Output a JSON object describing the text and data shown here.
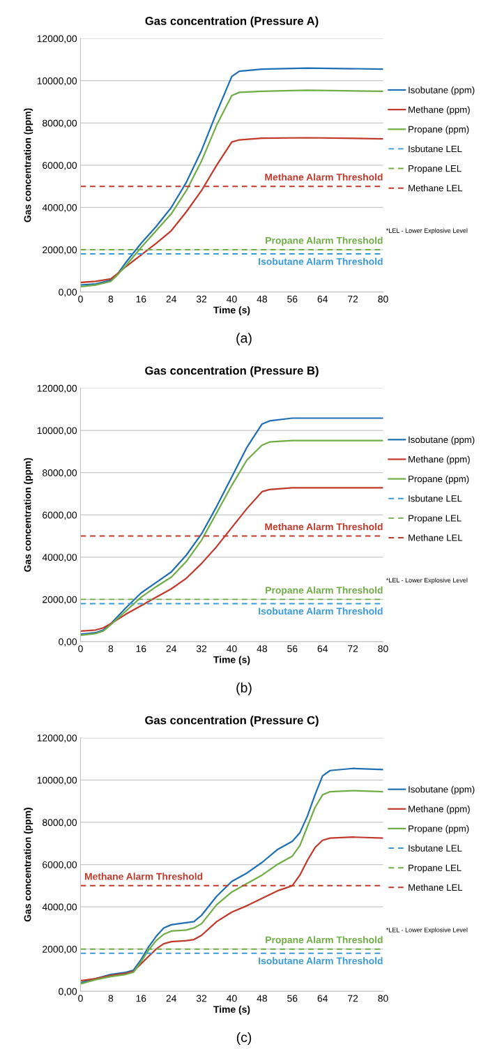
{
  "chart_data": [
    {
      "type": "line",
      "title": "Gas concentration (Pressure A)",
      "xlabel": "Time (s)",
      "ylabel": "Gas concentration (ppm)",
      "xlim": [
        0,
        80
      ],
      "xticks": [
        0,
        8,
        16,
        24,
        32,
        40,
        48,
        56,
        64,
        72,
        80
      ],
      "ylim": [
        0,
        12000
      ],
      "yticks": [
        {
          "value": 0,
          "label": "0,00"
        },
        {
          "value": 2000,
          "label": "2000,00"
        },
        {
          "value": 4000,
          "label": "4000,00"
        },
        {
          "value": 6000,
          "label": "6000,00"
        },
        {
          "value": 8000,
          "label": "8000,00"
        },
        {
          "value": 10000,
          "label": "10000,00"
        },
        {
          "value": 12000,
          "label": "12000,00"
        }
      ],
      "grid": "y",
      "legend": "right",
      "series": [
        {
          "name": "Isobutane (ppm)",
          "color": "#1f6fb4",
          "x": [
            0,
            4,
            8,
            10,
            12,
            16,
            20,
            24,
            28,
            32,
            36,
            40,
            42,
            48,
            60,
            80
          ],
          "values": [
            330,
            380,
            550,
            900,
            1400,
            2300,
            3100,
            4000,
            5200,
            6700,
            8500,
            10200,
            10450,
            10550,
            10600,
            10550
          ]
        },
        {
          "name": "Methane (ppm)",
          "color": "#c0392b",
          "x": [
            0,
            4,
            8,
            10,
            12,
            16,
            20,
            24,
            28,
            32,
            36,
            40,
            42,
            48,
            60,
            80
          ],
          "values": [
            450,
            500,
            620,
            900,
            1200,
            1750,
            2300,
            2900,
            3800,
            4800,
            6000,
            7100,
            7200,
            7280,
            7300,
            7250
          ]
        },
        {
          "name": "Propane (ppm)",
          "color": "#70ad47",
          "x": [
            0,
            4,
            8,
            10,
            12,
            16,
            20,
            24,
            28,
            32,
            36,
            40,
            42,
            48,
            60,
            80
          ],
          "values": [
            250,
            330,
            500,
            850,
            1250,
            2100,
            2900,
            3700,
            4800,
            6200,
            7900,
            9300,
            9450,
            9500,
            9550,
            9500
          ]
        },
        {
          "name": "Isbutane LEL",
          "color": "#3a9ad9",
          "line_style": "dashed",
          "x": [
            0,
            80
          ],
          "values": [
            1800,
            1800
          ]
        },
        {
          "name": "Propane LEL",
          "color": "#70ad47",
          "line_style": "dashed",
          "x": [
            0,
            80
          ],
          "values": [
            2000,
            2000
          ]
        },
        {
          "name": "Methane LEL",
          "color": "#c0392b",
          "line_style": "dashed",
          "x": [
            0,
            80
          ],
          "values": [
            5000,
            5000
          ]
        }
      ],
      "annotations": [
        "*LEL - Lower Explosive Level",
        "(a)",
        "Methane Alarm Threshold",
        "Propane Alarm Threshold",
        "Isobutane Alarm Threshold"
      ]
    },
    {
      "type": "line",
      "title": "Gas concentration (Pressure B)",
      "xlabel": "Time (s)",
      "ylabel": "Gas concentration (ppm)",
      "xlim": [
        0,
        80
      ],
      "xticks": [
        0,
        8,
        16,
        24,
        32,
        40,
        48,
        56,
        64,
        72,
        80
      ],
      "ylim": [
        0,
        12000
      ],
      "yticks": [
        {
          "value": 0,
          "label": "0,00"
        },
        {
          "value": 2000,
          "label": "2000,00"
        },
        {
          "value": 4000,
          "label": "4000,00"
        },
        {
          "value": 6000,
          "label": "6000,00"
        },
        {
          "value": 8000,
          "label": "8000,00"
        },
        {
          "value": 10000,
          "label": "10000,00"
        },
        {
          "value": 12000,
          "label": "12000,00"
        }
      ],
      "grid": "y",
      "legend": "right",
      "series": [
        {
          "name": "Isobutane (ppm)",
          "color": "#1f6fb4",
          "x": [
            0,
            4,
            6,
            8,
            12,
            16,
            20,
            24,
            28,
            32,
            36,
            40,
            44,
            48,
            50,
            56,
            80
          ],
          "values": [
            350,
            420,
            550,
            850,
            1600,
            2300,
            2800,
            3300,
            4100,
            5100,
            6400,
            7800,
            9200,
            10300,
            10450,
            10580,
            10580
          ]
        },
        {
          "name": "Methane (ppm)",
          "color": "#c0392b",
          "x": [
            0,
            4,
            6,
            8,
            12,
            16,
            20,
            24,
            28,
            32,
            36,
            40,
            44,
            48,
            50,
            56,
            80
          ],
          "values": [
            500,
            550,
            650,
            850,
            1300,
            1700,
            2100,
            2500,
            3000,
            3700,
            4500,
            5400,
            6300,
            7100,
            7200,
            7280,
            7280
          ]
        },
        {
          "name": "Propane (ppm)",
          "color": "#70ad47",
          "x": [
            0,
            4,
            6,
            8,
            12,
            16,
            20,
            24,
            28,
            32,
            36,
            40,
            44,
            48,
            50,
            56,
            80
          ],
          "values": [
            300,
            380,
            500,
            800,
            1450,
            2100,
            2600,
            3050,
            3800,
            4800,
            6100,
            7400,
            8600,
            9300,
            9450,
            9520,
            9520
          ]
        },
        {
          "name": "Isbutane LEL",
          "color": "#3a9ad9",
          "line_style": "dashed",
          "x": [
            0,
            80
          ],
          "values": [
            1800,
            1800
          ]
        },
        {
          "name": "Propane LEL",
          "color": "#70ad47",
          "line_style": "dashed",
          "x": [
            0,
            80
          ],
          "values": [
            2000,
            2000
          ]
        },
        {
          "name": "Methane LEL",
          "color": "#c0392b",
          "line_style": "dashed",
          "x": [
            0,
            80
          ],
          "values": [
            5000,
            5000
          ]
        }
      ],
      "annotations": [
        "*LEL - Lower Explosive Level",
        "(b)",
        "Methane Alarm Threshold",
        "Propane Alarm Threshold",
        "Isobutane Alarm Threshold"
      ]
    },
    {
      "type": "line",
      "title": "Gas concentration (Pressure C)",
      "xlabel": "Time (s)",
      "ylabel": "Gas concentration (ppm)",
      "xlim": [
        0,
        80
      ],
      "xticks": [
        0,
        8,
        16,
        24,
        32,
        40,
        48,
        56,
        64,
        72,
        80
      ],
      "ylim": [
        0,
        12000
      ],
      "yticks": [
        {
          "value": 0,
          "label": "0,00"
        },
        {
          "value": 2000,
          "label": "2000,00"
        },
        {
          "value": 4000,
          "label": "4000,00"
        },
        {
          "value": 6000,
          "label": "6000,00"
        },
        {
          "value": 8000,
          "label": "8000,00"
        },
        {
          "value": 10000,
          "label": "10000,00"
        },
        {
          "value": 12000,
          "label": "12000,00"
        }
      ],
      "grid": "y",
      "legend": "right",
      "series": [
        {
          "name": "Isobutane (ppm)",
          "color": "#1f6fb4",
          "x": [
            0,
            4,
            8,
            12,
            14,
            16,
            18,
            20,
            22,
            24,
            28,
            30,
            32,
            36,
            40,
            44,
            48,
            52,
            56,
            58,
            60,
            62,
            64,
            66,
            72,
            80
          ],
          "values": [
            400,
            600,
            800,
            900,
            1000,
            1500,
            2100,
            2600,
            3000,
            3150,
            3250,
            3300,
            3600,
            4500,
            5200,
            5600,
            6100,
            6700,
            7100,
            7500,
            8300,
            9300,
            10200,
            10450,
            10550,
            10500
          ]
        },
        {
          "name": "Methane (ppm)",
          "color": "#c0392b",
          "x": [
            0,
            4,
            8,
            12,
            14,
            16,
            18,
            20,
            22,
            24,
            28,
            30,
            32,
            36,
            40,
            44,
            48,
            52,
            56,
            58,
            60,
            62,
            64,
            66,
            72,
            80
          ],
          "values": [
            500,
            600,
            750,
            850,
            950,
            1300,
            1650,
            2000,
            2250,
            2350,
            2400,
            2450,
            2650,
            3300,
            3750,
            4050,
            4400,
            4750,
            5000,
            5500,
            6200,
            6800,
            7150,
            7250,
            7300,
            7250
          ]
        },
        {
          "name": "Propane (ppm)",
          "color": "#70ad47",
          "x": [
            0,
            4,
            8,
            12,
            14,
            16,
            18,
            20,
            22,
            24,
            28,
            30,
            32,
            36,
            40,
            44,
            48,
            52,
            56,
            58,
            60,
            62,
            64,
            66,
            72,
            80
          ],
          "values": [
            350,
            550,
            700,
            800,
            900,
            1400,
            1950,
            2400,
            2700,
            2850,
            2900,
            3000,
            3200,
            4100,
            4700,
            5100,
            5500,
            6000,
            6400,
            6900,
            7800,
            8700,
            9300,
            9450,
            9500,
            9450
          ]
        },
        {
          "name": "Isbutane LEL",
          "color": "#3a9ad9",
          "line_style": "dashed",
          "x": [
            0,
            80
          ],
          "values": [
            1800,
            1800
          ]
        },
        {
          "name": "Propane LEL",
          "color": "#70ad47",
          "line_style": "dashed",
          "x": [
            0,
            80
          ],
          "values": [
            2000,
            2000
          ]
        },
        {
          "name": "Methane LEL",
          "color": "#c0392b",
          "line_style": "dashed",
          "x": [
            0,
            80
          ],
          "values": [
            5000,
            5000
          ]
        }
      ],
      "annotations": [
        "*LEL - Lower Explosive Level",
        "(c)",
        "Methane Alarm Threshold",
        "Propane Alarm Threshold",
        "Isobutane Alarm Threshold"
      ]
    }
  ]
}
